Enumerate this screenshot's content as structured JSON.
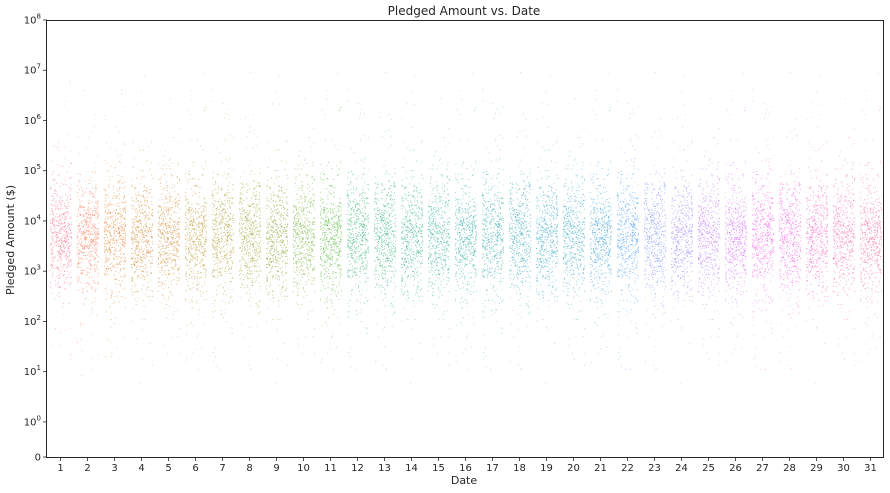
{
  "chart_data": {
    "type": "scatter",
    "style": "strip-plot (jittered points per category)",
    "title": "Pledged Amount vs. Date",
    "xlabel": "Date",
    "ylabel": "Pledged Amount ($)",
    "yscale": "symlog",
    "ylim": [
      0,
      100000000
    ],
    "grid": false,
    "legend": "none",
    "categories": [
      "1",
      "2",
      "3",
      "4",
      "5",
      "6",
      "7",
      "8",
      "9",
      "10",
      "11",
      "12",
      "13",
      "14",
      "15",
      "16",
      "17",
      "18",
      "19",
      "20",
      "21",
      "22",
      "23",
      "24",
      "25",
      "26",
      "27",
      "28",
      "29",
      "30",
      "31"
    ],
    "y_ticks": [
      {
        "base": "0",
        "exp": ""
      },
      {
        "base": "10",
        "exp": "0"
      },
      {
        "base": "10",
        "exp": "1"
      },
      {
        "base": "10",
        "exp": "2"
      },
      {
        "base": "10",
        "exp": "3"
      },
      {
        "base": "10",
        "exp": "4"
      },
      {
        "base": "10",
        "exp": "5"
      },
      {
        "base": "10",
        "exp": "6"
      },
      {
        "base": "10",
        "exp": "7"
      },
      {
        "base": "10",
        "exp": "8"
      }
    ],
    "series_colors": [
      "#f77189",
      "#f7754f",
      "#e18532",
      "#cf8c32",
      "#bb9832",
      "#ae9d31",
      "#9ea231",
      "#8ba831",
      "#72b031",
      "#4fb632",
      "#33b573",
      "#34b38a",
      "#35b099",
      "#35aea5",
      "#36acae",
      "#37a9b8",
      "#38a7c3",
      "#39a3d4",
      "#4a9ff2",
      "#7e93f4",
      "#a186f4",
      "#bb78f4",
      "#d36af4",
      "#f25ee1",
      "#f565c5",
      "#f66bad",
      "#f66d99"
    ],
    "distribution": {
      "median": 5000,
      "iqr_low": 1000,
      "iqr_high": 30000,
      "min": 0,
      "max": 30000000
    }
  }
}
